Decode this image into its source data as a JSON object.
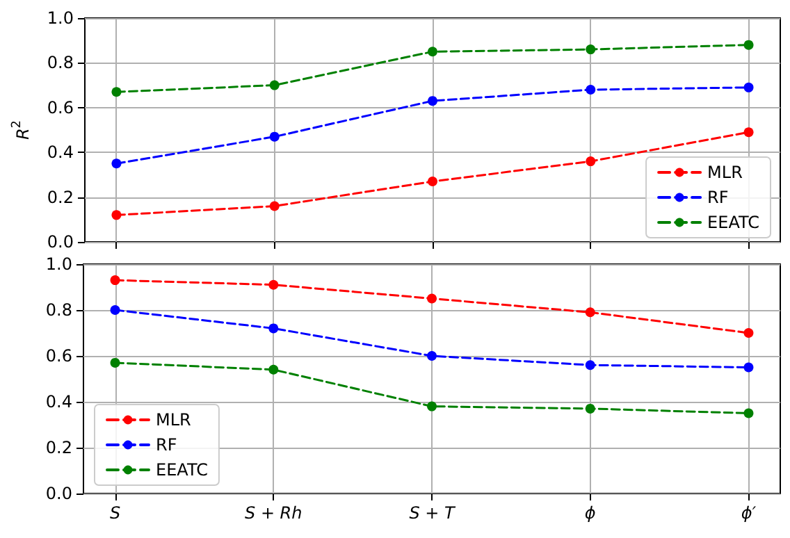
{
  "chart_data": [
    {
      "type": "line",
      "ylabel": "R$^{2}$",
      "categories": [
        null,
        null,
        null,
        null,
        null
      ],
      "ylim": [
        0,
        1
      ],
      "yticks": [
        {
          "value": 0,
          "label": "0.0"
        },
        {
          "value": 0.2,
          "label": "0.2"
        },
        {
          "value": 0.4,
          "label": "0.4"
        },
        {
          "value": 0.6,
          "label": "0.6"
        },
        {
          "value": 0.8,
          "label": "0.8"
        },
        {
          "value": 1,
          "label": "1.0"
        }
      ],
      "grid": true,
      "legend": "bottom right",
      "marker": "circle",
      "line_style": "dashed",
      "tick_labels": "y",
      "series": [
        {
          "name": "MLR",
          "color": "#ff0000",
          "values": [
            0.12,
            0.16,
            0.27,
            0.36,
            0.49
          ]
        },
        {
          "name": "RF",
          "color": "#0000ff",
          "values": [
            0.35,
            0.47,
            0.63,
            0.68,
            0.69
          ]
        },
        {
          "name": "EEATC",
          "color": "#008000",
          "values": [
            0.67,
            0.7,
            0.85,
            0.86,
            0.88
          ]
        }
      ]
    },
    {
      "type": "line",
      "categories": [
        "S",
        "S + Rh",
        "S + T",
        "ϕ",
        "ϕ′"
      ],
      "ylim": [
        0,
        1
      ],
      "yticks": [
        {
          "value": 0,
          "label": "0.0"
        },
        {
          "value": 0.2,
          "label": "0.2"
        },
        {
          "value": 0.4,
          "label": "0.4"
        },
        {
          "value": 0.6,
          "label": "0.6"
        },
        {
          "value": 0.8,
          "label": "0.8"
        },
        {
          "value": 1,
          "label": "1.0"
        }
      ],
      "grid": true,
      "legend": "bottom left",
      "marker": "circle",
      "line_style": "dashed",
      "series": [
        {
          "name": "MLR",
          "color": "#ff0000",
          "values": [
            0.93,
            0.91,
            0.85,
            0.79,
            0.7
          ]
        },
        {
          "name": "RF",
          "color": "#0000ff",
          "values": [
            0.8,
            0.72,
            0.6,
            0.56,
            0.55
          ]
        },
        {
          "name": "EEATC",
          "color": "#008000",
          "values": [
            0.57,
            0.54,
            0.38,
            0.37,
            0.35
          ]
        }
      ]
    }
  ]
}
